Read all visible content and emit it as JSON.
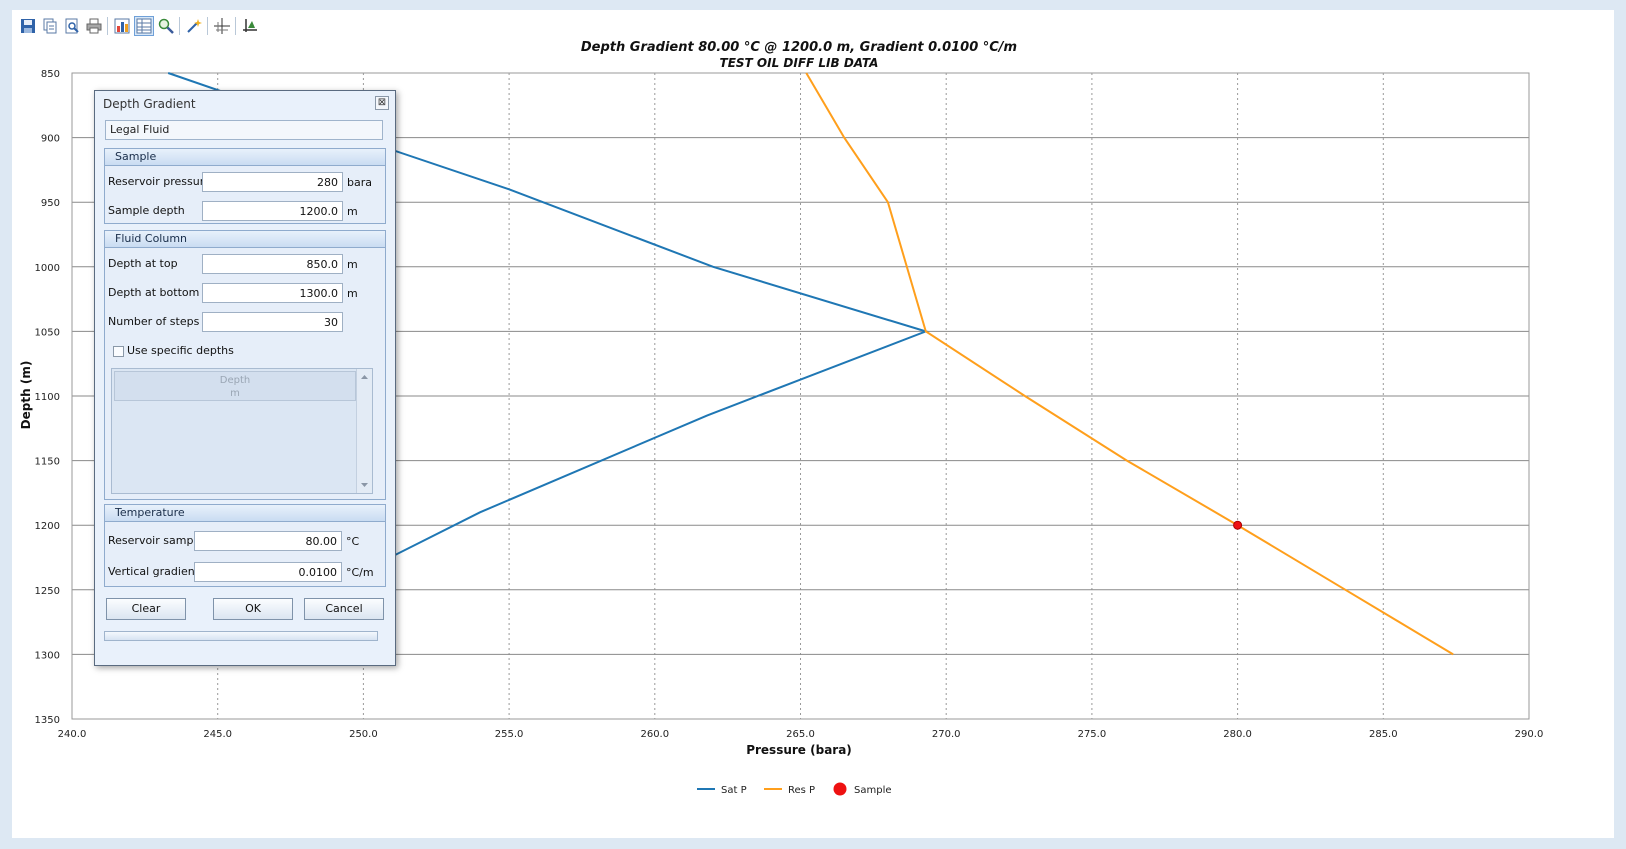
{
  "toolbar": {
    "icons": [
      "save-icon",
      "copy-icon",
      "print-preview-icon",
      "print-icon",
      "chart-properties-icon",
      "table-view-icon",
      "zoom-icon",
      "magic-wand-icon",
      "crosshair-icon",
      "fit-axis-icon"
    ]
  },
  "chart_data": {
    "type": "line",
    "title": "Depth Gradient 80.00 °C @ 1200.0 m, Gradient 0.0100 °C/m",
    "subtitle": "TEST OIL DIFF LIB DATA",
    "xlabel": "Pressure (bara)",
    "ylabel": "Depth (m)",
    "xlim": [
      240,
      290
    ],
    "ylim": [
      850,
      1350
    ],
    "y_inverted": true,
    "grid": true,
    "legend_position": "bottom",
    "x_ticks": [
      "240.0",
      "245.0",
      "250.0",
      "255.0",
      "260.0",
      "265.0",
      "270.0",
      "275.0",
      "280.0",
      "285.0",
      "290.0"
    ],
    "y_ticks": [
      "850",
      "900",
      "950",
      "1000",
      "1050",
      "1100",
      "1150",
      "1200",
      "1250",
      "1300",
      "1350"
    ],
    "series": [
      {
        "name": "Sat P",
        "color": "#1f77b4",
        "points": [
          [
            243.3,
            850
          ],
          [
            250,
            902
          ],
          [
            255,
            940
          ],
          [
            262,
            1000
          ],
          [
            269.3,
            1050
          ],
          [
            261.8,
            1115
          ],
          [
            254,
            1190
          ],
          [
            244.3,
            1300
          ]
        ]
      },
      {
        "name": "Res P",
        "color": "#ff9f1c",
        "points": [
          [
            265.2,
            850
          ],
          [
            266.5,
            900
          ],
          [
            268,
            950
          ],
          [
            269.3,
            1050
          ],
          [
            272.7,
            1100
          ],
          [
            276.2,
            1150
          ],
          [
            280,
            1200
          ],
          [
            283.7,
            1250
          ],
          [
            287.4,
            1300
          ]
        ]
      },
      {
        "name": "Sample",
        "color": "#ee1111",
        "type": "scatter",
        "points": [
          [
            280,
            1200
          ]
        ]
      }
    ]
  },
  "dialog": {
    "title": "Depth Gradient",
    "close_label": "⊠",
    "fluid_name": "Legal Fluid",
    "sample": {
      "header": "Sample",
      "reservoir_pressure_label": "Reservoir pressure",
      "reservoir_pressure_value": "280",
      "reservoir_pressure_unit": "bara",
      "sample_depth_label": "Sample depth",
      "sample_depth_value": "1200.0",
      "sample_depth_unit": "m"
    },
    "fluid_column": {
      "header": "Fluid Column",
      "depth_top_label": "Depth at top",
      "depth_top_value": "850.0",
      "depth_top_unit": "m",
      "depth_bottom_label": "Depth at bottom",
      "depth_bottom_value": "1300.0",
      "depth_bottom_unit": "m",
      "steps_label": "Number of steps",
      "steps_value": "30",
      "use_specific_label": "Use specific depths",
      "use_specific_checked": false,
      "list_header": "Depth",
      "list_unit": "m"
    },
    "temperature": {
      "header": "Temperature",
      "reservoir_sample_label": "Reservoir sample",
      "reservoir_sample_value": "80.00",
      "reservoir_sample_unit": "°C",
      "vertical_gradient_label": "Vertical gradient",
      "vertical_gradient_value": "0.0100",
      "vertical_gradient_unit": "°C/m"
    },
    "buttons": {
      "clear": "Clear",
      "ok": "OK",
      "cancel": "Cancel"
    }
  }
}
